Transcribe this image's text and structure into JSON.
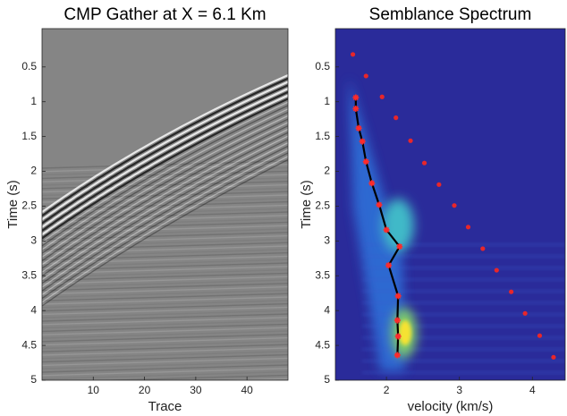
{
  "chart_data": [
    {
      "type": "image",
      "title": "CMP Gather at X = 6.1 Km",
      "xlabel": "Trace",
      "ylabel": "Time (s)",
      "xlim": [
        0,
        48
      ],
      "xticks": [
        10,
        20,
        30,
        40
      ],
      "ylim": [
        -0.05,
        5
      ],
      "yticks": [
        0.5,
        1,
        1.5,
        2,
        2.5,
        3,
        3.5,
        4,
        4.5,
        5
      ],
      "y_reversed": true
    },
    {
      "type": "scatter",
      "title": "Semblance Spectrum",
      "xlabel": "velocity (km/s)",
      "ylabel": "Time (s)",
      "xlim": [
        1.3,
        4.45
      ],
      "xticks": [
        2,
        3,
        4
      ],
      "ylim": [
        -0.05,
        5
      ],
      "yticks": [
        0.5,
        1,
        1.5,
        2,
        2.5,
        3,
        3.5,
        4,
        4.5,
        5
      ],
      "y_reversed": true,
      "series": [
        {
          "color": "#e8262a",
          "marker": "dot",
          "x": [
            1.54,
            1.72,
            1.94,
            2.13,
            2.33,
            2.52,
            2.72,
            2.93,
            3.12,
            3.32,
            3.51,
            3.71,
            3.9,
            4.1,
            4.29
          ],
          "values": [
            0.32,
            0.63,
            0.93,
            1.23,
            1.56,
            1.88,
            2.19,
            2.49,
            2.8,
            3.11,
            3.42,
            3.73,
            4.04,
            4.36,
            4.67
          ]
        },
        {
          "color": "#ff2a2a",
          "marker": "star",
          "line_color": "#000000",
          "x": [
            1.58,
            1.58,
            1.62,
            1.67,
            1.72,
            1.8,
            1.9,
            2.0,
            2.18,
            2.03,
            2.16,
            2.15,
            2.16,
            2.15
          ],
          "values": [
            0.94,
            1.1,
            1.38,
            1.57,
            1.86,
            2.17,
            2.48,
            2.84,
            3.08,
            3.35,
            3.79,
            4.14,
            4.37,
            4.64
          ]
        }
      ]
    }
  ]
}
